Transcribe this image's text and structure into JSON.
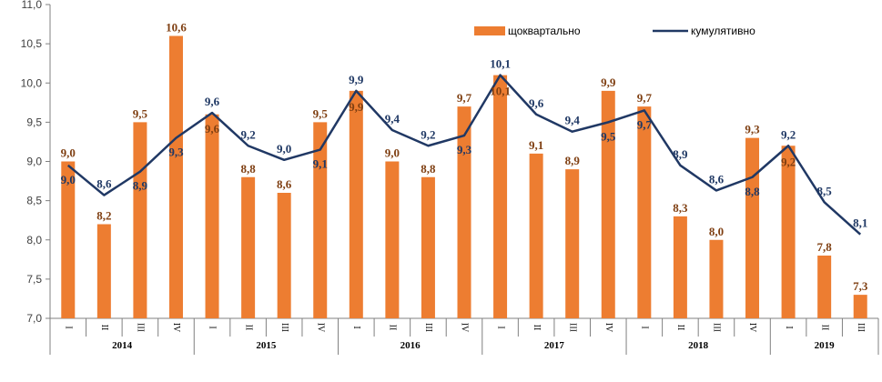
{
  "chart_data": {
    "type": "bar",
    "ylim": [
      7.0,
      11.0
    ],
    "yticks": [
      "7,0",
      "7,5",
      "8,0",
      "8,5",
      "9,0",
      "9,5",
      "10,0",
      "10,5",
      "11,0"
    ],
    "categories": [
      "I",
      "II",
      "III",
      "IV",
      "I",
      "II",
      "III",
      "IV",
      "I",
      "II",
      "III",
      "IV",
      "I",
      "II",
      "III",
      "IV",
      "I",
      "II",
      "III",
      "IV",
      "I",
      "II",
      "III"
    ],
    "years": [
      {
        "label": "2014",
        "count": 4
      },
      {
        "label": "2015",
        "count": 4
      },
      {
        "label": "2016",
        "count": 4
      },
      {
        "label": "2017",
        "count": 4
      },
      {
        "label": "2018",
        "count": 4
      },
      {
        "label": "2019",
        "count": 3
      }
    ],
    "series": [
      {
        "name": "щоквартально",
        "kind": "bar",
        "color": "#ed7d31",
        "values": [
          9.0,
          8.2,
          9.5,
          10.6,
          9.6,
          8.8,
          8.6,
          9.5,
          9.9,
          9.0,
          8.8,
          9.7,
          10.1,
          9.1,
          8.9,
          9.9,
          9.7,
          8.3,
          8.0,
          9.3,
          9.2,
          7.8,
          7.3
        ],
        "labels": [
          "9,0",
          "8,2",
          "9,5",
          "10,6",
          "9,6",
          "8,8",
          "8,6",
          "9,5",
          "9,9",
          "9,0",
          "8,8",
          "9,7",
          "10,1",
          "9,1",
          "8,9",
          "9,9",
          "9,7",
          "8,3",
          "8,0",
          "9,3",
          "9,2",
          "7,8",
          "7,3"
        ]
      },
      {
        "name": "кумулятивно",
        "kind": "line",
        "color": "#203864",
        "values": [
          8.95,
          8.57,
          8.87,
          9.3,
          9.62,
          9.2,
          9.02,
          9.15,
          9.9,
          9.4,
          9.2,
          9.33,
          10.1,
          9.6,
          9.38,
          9.5,
          9.65,
          8.95,
          8.63,
          8.8,
          9.2,
          8.48,
          8.07
        ],
        "labels": [
          "9,0",
          "8,6",
          "8,9",
          "9,3",
          "9,6",
          "9,2",
          "9,0",
          "9,1",
          "9,9",
          "9,4",
          "9,2",
          "9,3",
          "10,1",
          "9,6",
          "9,4",
          "9,5",
          "9,7",
          "8,9",
          "8,6",
          "8,8",
          "9,2",
          "8,5",
          "8,1"
        ]
      }
    ],
    "legend_position": "top-right",
    "grid": false
  }
}
